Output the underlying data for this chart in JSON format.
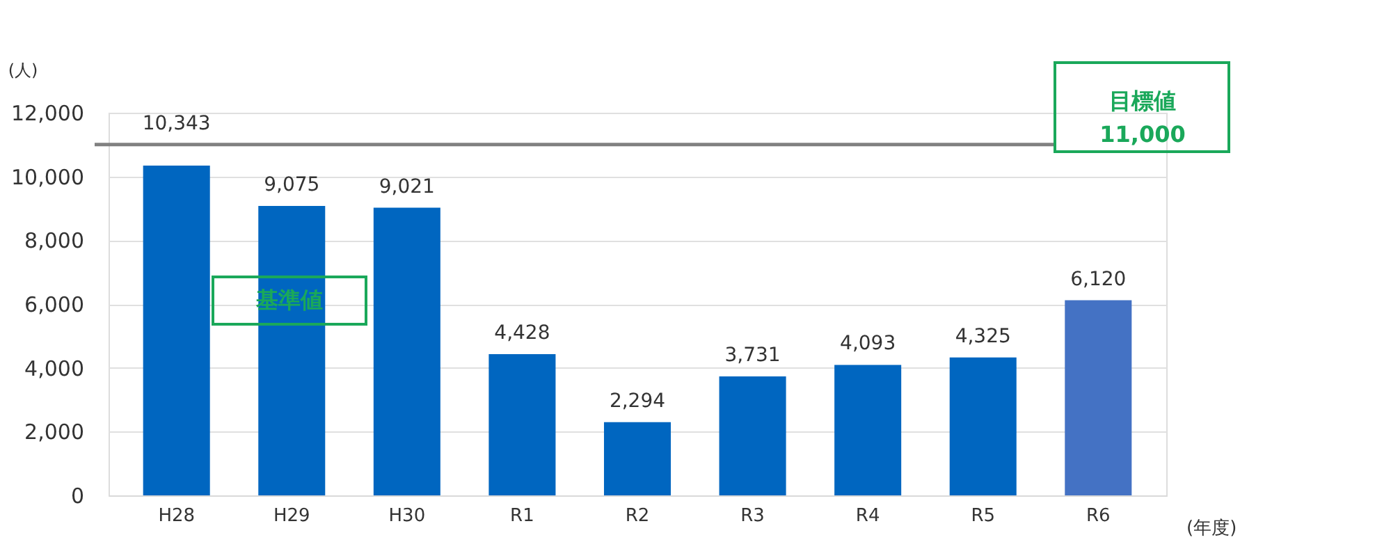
{
  "chart_data": {
    "type": "bar",
    "categories": [
      "H28",
      "H29",
      "H30",
      "R1",
      "R2",
      "R3",
      "R4",
      "R5",
      "R6"
    ],
    "values": [
      10343,
      9075,
      9021,
      4428,
      2294,
      3731,
      4093,
      4325,
      6120
    ],
    "value_labels": [
      "10,343",
      "9,075",
      "9,021",
      "4,428",
      "2,294",
      "3,731",
      "4,093",
      "4,325",
      "6,120"
    ],
    "colors": [
      "#0066c0",
      "#0066c0",
      "#0066c0",
      "#0066c0",
      "#0066c0",
      "#0066c0",
      "#0066c0",
      "#0066c0",
      "#4472c4"
    ],
    "ylabel": "(人)",
    "xlabel": "(年度)",
    "ylim": [
      0,
      12000
    ],
    "yticks": [
      0,
      {
        "value": 2000,
        "label": "2,000"
      },
      {
        "value": 4000,
        "label": "4,000"
      },
      {
        "value": 6000,
        "label": "6,000"
      },
      {
        "value": 8000,
        "label": "8,000"
      },
      {
        "value": 10000,
        "label": "10,000"
      },
      {
        "value": 12000,
        "label": "12,000"
      }
    ],
    "grid": "y",
    "ref_lines": [
      {
        "axis": "y",
        "value": 11000,
        "label": "目標値 11,000",
        "color": "#808080"
      }
    ],
    "annotations": [
      "基準値"
    ]
  }
}
